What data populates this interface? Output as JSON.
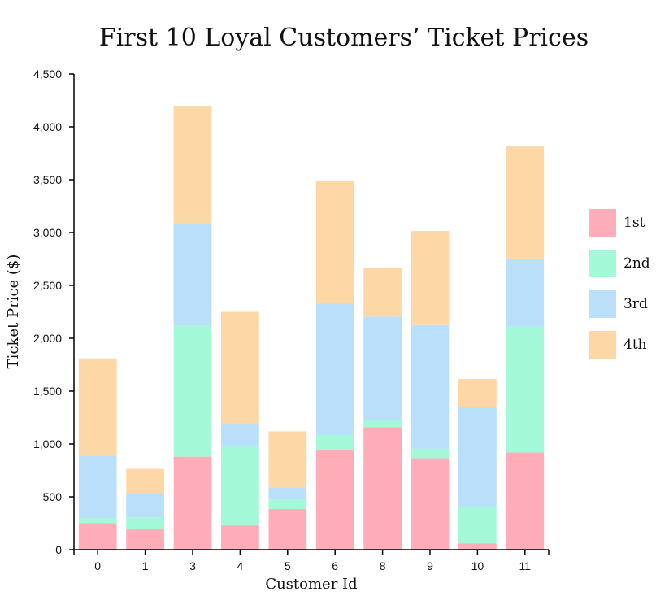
{
  "chart_data": {
    "type": "bar",
    "stacked": true,
    "title": "First 10 Loyal Customers’ Ticket Prices",
    "xlabel": "Customer Id",
    "ylabel": "Ticket Price ($)",
    "ylim": [
      0,
      4500
    ],
    "yticks": [
      0,
      500,
      1000,
      1500,
      2000,
      2500,
      3000,
      3500,
      4000,
      4500
    ],
    "ytick_labels": [
      "0",
      "500",
      "1,000",
      "1,500",
      "2,000",
      "2,500",
      "3,000",
      "3,500",
      "4,000",
      "4,500"
    ],
    "categories": [
      "0",
      "1",
      "3",
      "4",
      "5",
      "6",
      "8",
      "9",
      "10",
      "11"
    ],
    "grid": false,
    "legend_position": "right",
    "series": [
      {
        "name": "1st",
        "color": "#ffadb9",
        "values": [
          250,
          200,
          880,
          230,
          385,
          940,
          1160,
          865,
          60,
          920
        ]
      },
      {
        "name": "2nd",
        "color": "#a3f8d8",
        "values": [
          50,
          105,
          1240,
          755,
          90,
          145,
          70,
          90,
          340,
          1190
        ]
      },
      {
        "name": "3rd",
        "color": "#badffb",
        "values": [
          590,
          220,
          970,
          210,
          115,
          1245,
          975,
          1170,
          950,
          645
        ]
      },
      {
        "name": "4th",
        "color": "#fed7a6",
        "values": [
          920,
          240,
          1110,
          1055,
          530,
          1160,
          460,
          890,
          265,
          1060
        ]
      }
    ]
  }
}
